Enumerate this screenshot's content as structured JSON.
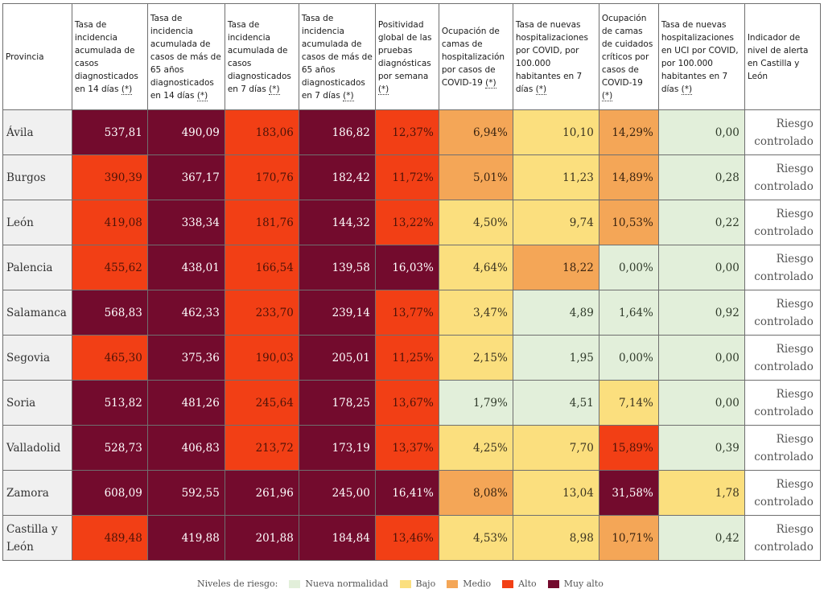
{
  "headers": [
    "Provincia",
    "Tasa de incidencia acumulada de casos diagnosticados en 14 días",
    "Tasa de incidencia acumulada de casos de más de 65 años diagnosticados en 14 días",
    "Tasa de incidencia acumulada de casos diagnosticados en 7 días",
    "Tasa de incidencia acumulada de casos de más de 65 años diagnosticados en 7 días",
    "Positividad global de las pruebas diagnósticas por semana",
    "Ocupación de camas de hospitalización por casos de COVID-19",
    "Tasa de nuevas hospitalizaciones por COVID, por 100.000 habitantes en 7 días",
    "Ocupación de camas de cuidados críticos por casos de COVID-19",
    "Tasa de nuevas hospitalizaciones en UCI por COVID, por 100.000 habitantes en 7 días",
    "Indicador de nivel de alerta en Castilla y León"
  ],
  "asterisk": "(*)",
  "rows": [
    {
      "provincia": "Ávila",
      "values": [
        "537,81",
        "490,09",
        "183,06",
        "186,82",
        "12,37%",
        "6,94%",
        "10,10",
        "14,29%",
        "0,00"
      ],
      "levels": [
        "mu",
        "mu",
        "al",
        "mu",
        "al",
        "me",
        "ba",
        "me",
        "nn"
      ],
      "indicator": "Riesgo controlado"
    },
    {
      "provincia": "Burgos",
      "values": [
        "390,39",
        "367,17",
        "170,76",
        "182,42",
        "11,72%",
        "5,01%",
        "11,23",
        "14,89%",
        "0,28"
      ],
      "levels": [
        "al",
        "mu",
        "al",
        "mu",
        "al",
        "me",
        "ba",
        "me",
        "nn"
      ],
      "indicator": "Riesgo controlado"
    },
    {
      "provincia": "León",
      "values": [
        "419,08",
        "338,34",
        "181,76",
        "144,32",
        "13,22%",
        "4,50%",
        "9,74",
        "10,53%",
        "0,22"
      ],
      "levels": [
        "al",
        "mu",
        "al",
        "mu",
        "al",
        "ba",
        "ba",
        "me",
        "nn"
      ],
      "indicator": "Riesgo controlado"
    },
    {
      "provincia": "Palencia",
      "values": [
        "455,62",
        "438,01",
        "166,54",
        "139,58",
        "16,03%",
        "4,64%",
        "18,22",
        "0,00%",
        "0,00"
      ],
      "levels": [
        "al",
        "mu",
        "al",
        "mu",
        "mu",
        "ba",
        "me",
        "nn",
        "nn"
      ],
      "indicator": "Riesgo controlado"
    },
    {
      "provincia": "Salamanca",
      "values": [
        "568,83",
        "462,33",
        "233,70",
        "239,14",
        "13,77%",
        "3,47%",
        "4,89",
        "1,64%",
        "0,92"
      ],
      "levels": [
        "mu",
        "mu",
        "al",
        "mu",
        "al",
        "ba",
        "nn",
        "nn",
        "nn"
      ],
      "indicator": "Riesgo controlado"
    },
    {
      "provincia": "Segovia",
      "values": [
        "465,30",
        "375,36",
        "190,03",
        "205,01",
        "11,25%",
        "2,15%",
        "1,95",
        "0,00%",
        "0,00"
      ],
      "levels": [
        "al",
        "mu",
        "al",
        "mu",
        "al",
        "ba",
        "nn",
        "nn",
        "nn"
      ],
      "indicator": "Riesgo controlado"
    },
    {
      "provincia": "Soria",
      "values": [
        "513,82",
        "481,26",
        "245,64",
        "178,25",
        "13,67%",
        "1,79%",
        "4,51",
        "7,14%",
        "0,00"
      ],
      "levels": [
        "mu",
        "mu",
        "al",
        "mu",
        "al",
        "nn",
        "nn",
        "ba",
        "nn"
      ],
      "indicator": "Riesgo controlado"
    },
    {
      "provincia": "Valladolid",
      "values": [
        "528,73",
        "406,83",
        "213,72",
        "173,19",
        "13,37%",
        "4,25%",
        "7,70",
        "15,89%",
        "0,39"
      ],
      "levels": [
        "mu",
        "mu",
        "al",
        "mu",
        "al",
        "ba",
        "ba",
        "al",
        "nn"
      ],
      "indicator": "Riesgo controlado"
    },
    {
      "provincia": "Zamora",
      "values": [
        "608,09",
        "592,55",
        "261,96",
        "245,00",
        "16,41%",
        "8,08%",
        "13,04",
        "31,58%",
        "1,78"
      ],
      "levels": [
        "mu",
        "mu",
        "mu",
        "mu",
        "mu",
        "me",
        "ba",
        "mu",
        "ba"
      ],
      "indicator": "Riesgo controlado"
    },
    {
      "provincia": "Castilla y León",
      "values": [
        "489,48",
        "419,88",
        "201,88",
        "184,84",
        "13,46%",
        "4,53%",
        "8,98",
        "10,71%",
        "0,42"
      ],
      "levels": [
        "al",
        "mu",
        "mu",
        "mu",
        "al",
        "ba",
        "ba",
        "me",
        "nn"
      ],
      "indicator": "Riesgo controlado"
    }
  ],
  "legend": {
    "label": "Niveles de riesgo:",
    "items": [
      {
        "name": "Nueva normalidad",
        "color": "#e2efda"
      },
      {
        "name": "Bajo",
        "color": "#fbdf7e"
      },
      {
        "name": "Medio",
        "color": "#f4a657"
      },
      {
        "name": "Alto",
        "color": "#f23f15"
      },
      {
        "name": "Muy alto",
        "color": "#730b2d"
      }
    ]
  }
}
